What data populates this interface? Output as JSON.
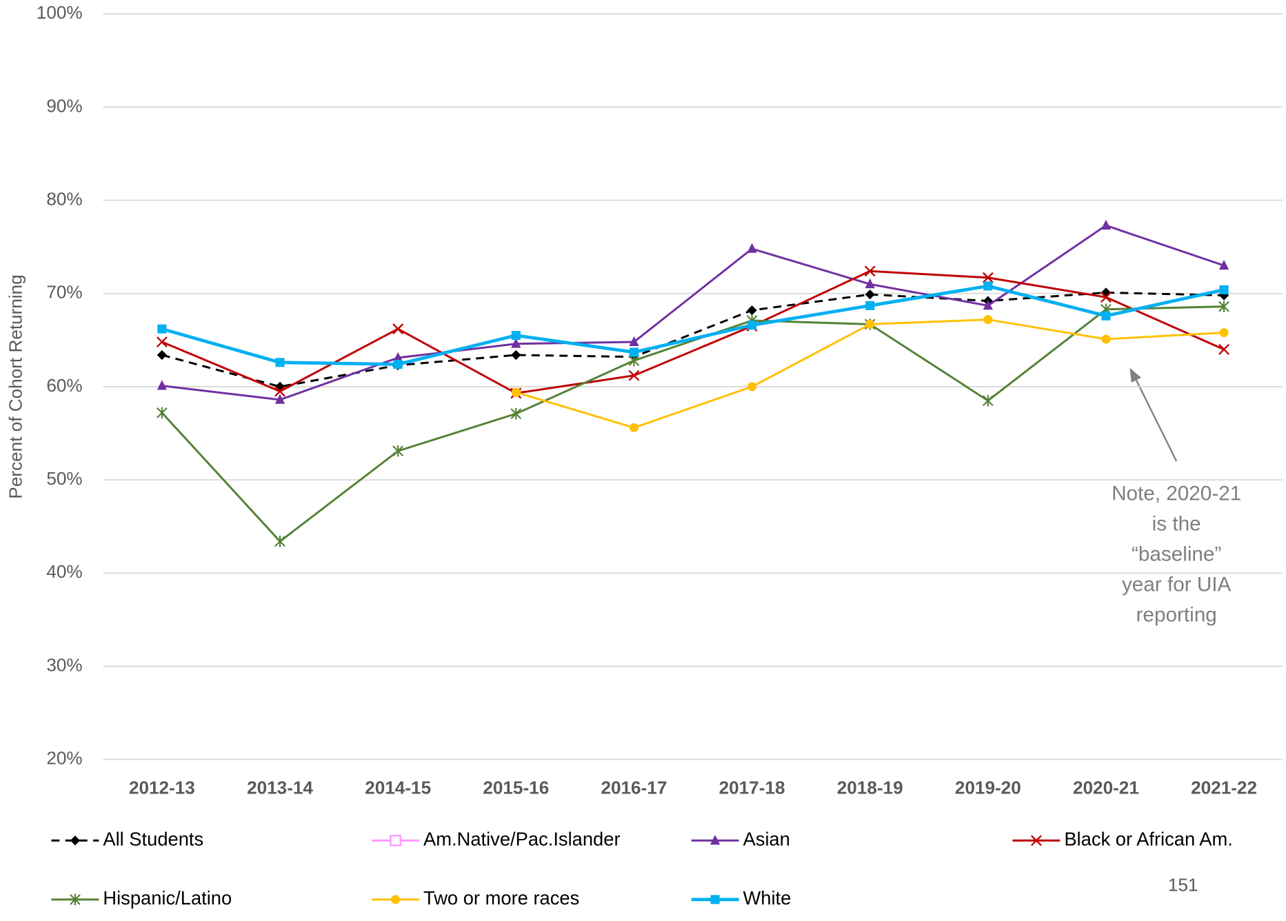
{
  "chart_data": {
    "type": "line",
    "y_label": "Percent of Cohort Returning",
    "categories": [
      "2012-13",
      "2013-14",
      "2014-15",
      "2015-16",
      "2016-17",
      "2017-18",
      "2018-19",
      "2019-20",
      "2020-21",
      "2021-22"
    ],
    "ylim": [
      20,
      100
    ],
    "yticks": [
      {
        "value": 20,
        "label": "20%"
      },
      {
        "value": 30,
        "label": "30%"
      },
      {
        "value": 40,
        "label": "40%"
      },
      {
        "value": 50,
        "label": "50%"
      },
      {
        "value": 60,
        "label": "60%"
      },
      {
        "value": 70,
        "label": "70%"
      },
      {
        "value": 80,
        "label": "80%"
      },
      {
        "value": 90,
        "label": "90%"
      },
      {
        "value": 100,
        "label": "100%"
      }
    ],
    "grid": true,
    "legend": "bottom",
    "series": [
      {
        "name": "All Students",
        "color": "#000000",
        "marker": "diamond",
        "dash": true,
        "width": 2.5,
        "values": [
          63.4,
          60.0,
          62.3,
          63.4,
          63.2,
          68.2,
          69.9,
          69.2,
          70.1,
          69.8
        ]
      },
      {
        "name": "Am.Native/Pac.Islander",
        "color": "#ff99ff",
        "marker": "open-square",
        "dash": false,
        "width": 2.5,
        "values": [
          null,
          null,
          null,
          null,
          null,
          null,
          null,
          null,
          null,
          null
        ]
      },
      {
        "name": "Asian",
        "color": "#7030a0",
        "marker": "triangle",
        "dash": false,
        "width": 2.5,
        "values": [
          60.1,
          58.6,
          63.1,
          64.6,
          64.8,
          74.8,
          71.0,
          68.7,
          77.3,
          73.0
        ]
      },
      {
        "name": "Black or African Am.",
        "color": "#c00000",
        "marker": "x",
        "dash": false,
        "width": 2.5,
        "values": [
          64.8,
          59.5,
          66.2,
          59.3,
          61.2,
          66.5,
          72.4,
          71.7,
          69.6,
          64.0
        ]
      },
      {
        "name": "Hispanic/Latino",
        "color": "#548235",
        "marker": "star",
        "dash": false,
        "width": 2.5,
        "values": [
          57.2,
          43.4,
          53.1,
          57.1,
          62.8,
          67.1,
          66.7,
          58.5,
          68.3,
          68.6
        ]
      },
      {
        "name": "Two or more races",
        "color": "#ffc000",
        "marker": "circle",
        "dash": false,
        "width": 2.5,
        "values": [
          null,
          null,
          null,
          59.4,
          55.6,
          60.0,
          66.7,
          67.2,
          65.1,
          65.8
        ]
      },
      {
        "name": "White",
        "color": "#00b0f0",
        "marker": "square",
        "dash": false,
        "width": 4,
        "values": [
          66.2,
          62.6,
          62.4,
          65.5,
          63.7,
          66.6,
          68.7,
          70.8,
          67.6,
          70.4
        ]
      }
    ],
    "annotation": [
      "Note, 2020-21",
      "is the",
      "“baseline”",
      "year for UIA",
      "reporting"
    ],
    "page_number": "151"
  }
}
